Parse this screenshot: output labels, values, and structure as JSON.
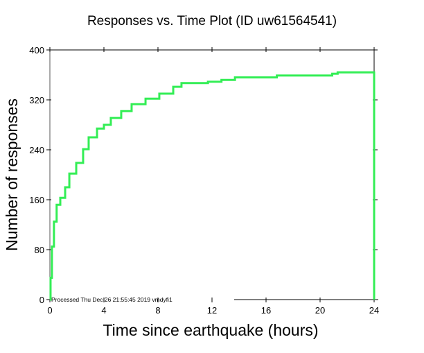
{
  "chart_data": {
    "type": "line",
    "title": "Responses vs. Time Plot (ID uw61564541)",
    "xlabel": "Time since earthquake (hours)",
    "ylabel": "Number of responses",
    "xlim": [
      0,
      24
    ],
    "ylim": [
      0,
      400
    ],
    "xticks": [
      0,
      4,
      8,
      12,
      16,
      20,
      24
    ],
    "yticks": [
      0,
      80,
      160,
      240,
      320,
      400
    ],
    "grid": false,
    "annotation": "Processed Thu Dec 26 21:55:45 2019 vmdyfi1",
    "series": [
      {
        "name": "Responses",
        "color": "#33ee55",
        "step": true,
        "x": [
          0,
          0.05,
          0.15,
          0.3,
          0.5,
          0.77,
          1.13,
          1.44,
          1.95,
          2.46,
          2.87,
          3.49,
          4.0,
          4.51,
          5.28,
          6.05,
          7.08,
          8.1,
          9.13,
          9.74,
          11.7,
          12.7,
          13.7,
          16.8,
          20.9,
          21.3,
          24,
          24
        ],
        "y": [
          0,
          35,
          85,
          125,
          152,
          163,
          180,
          202,
          219,
          241,
          260,
          274,
          280,
          291,
          302,
          313,
          322,
          330,
          341,
          347,
          349,
          352,
          356,
          359,
          362,
          364,
          364,
          0
        ]
      }
    ]
  }
}
